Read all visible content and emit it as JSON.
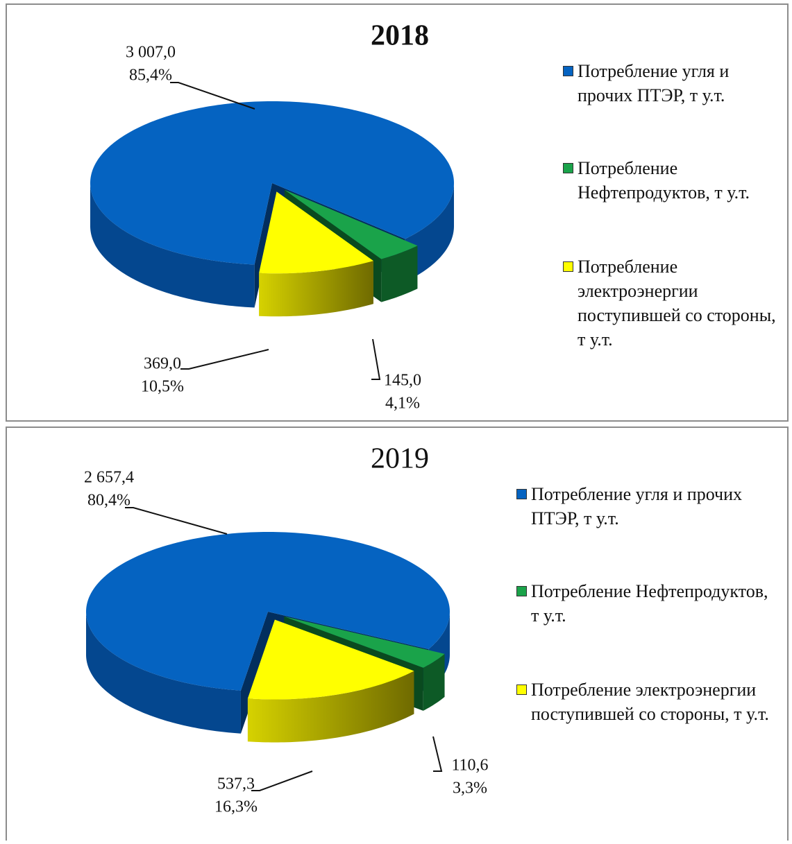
{
  "chart_data": [
    {
      "type": "pie3d",
      "title": "2018",
      "categories": [
        "Потребление угля и прочих ПТЭР, т у.т.",
        "Потребление Нефтепродуктов, т у.т.",
        "Потребление электроэнергии поступившей со стороны, т у.т."
      ],
      "values": [
        3007,
        145,
        369
      ],
      "value_labels": [
        "3 007,0",
        "145,0",
        "369,0"
      ],
      "percents": [
        85.4,
        4.1,
        10.5
      ],
      "percent_labels": [
        "85,4%",
        "4,1%",
        "10,5%"
      ],
      "colors": [
        "#0563c1",
        "#1aa34a",
        "#ffff00"
      ],
      "legend": "right"
    },
    {
      "type": "pie3d",
      "title": "2019",
      "categories": [
        "Потребление угля и прочих ПТЭР, т у.т.",
        "Потребление Нефтепродуктов, т у.т.",
        "Потребление электроэнергии поступившей со стороны, т у.т."
      ],
      "values": [
        2657.4,
        110.6,
        537.3
      ],
      "value_labels": [
        "2 657,4",
        "110,6",
        "537,3"
      ],
      "percents": [
        80.4,
        3.3,
        16.3
      ],
      "percent_labels": [
        "80,4%",
        "3,3%",
        "16,3%"
      ],
      "colors": [
        "#0563c1",
        "#1aa34a",
        "#ffff00"
      ],
      "legend": "right"
    }
  ]
}
